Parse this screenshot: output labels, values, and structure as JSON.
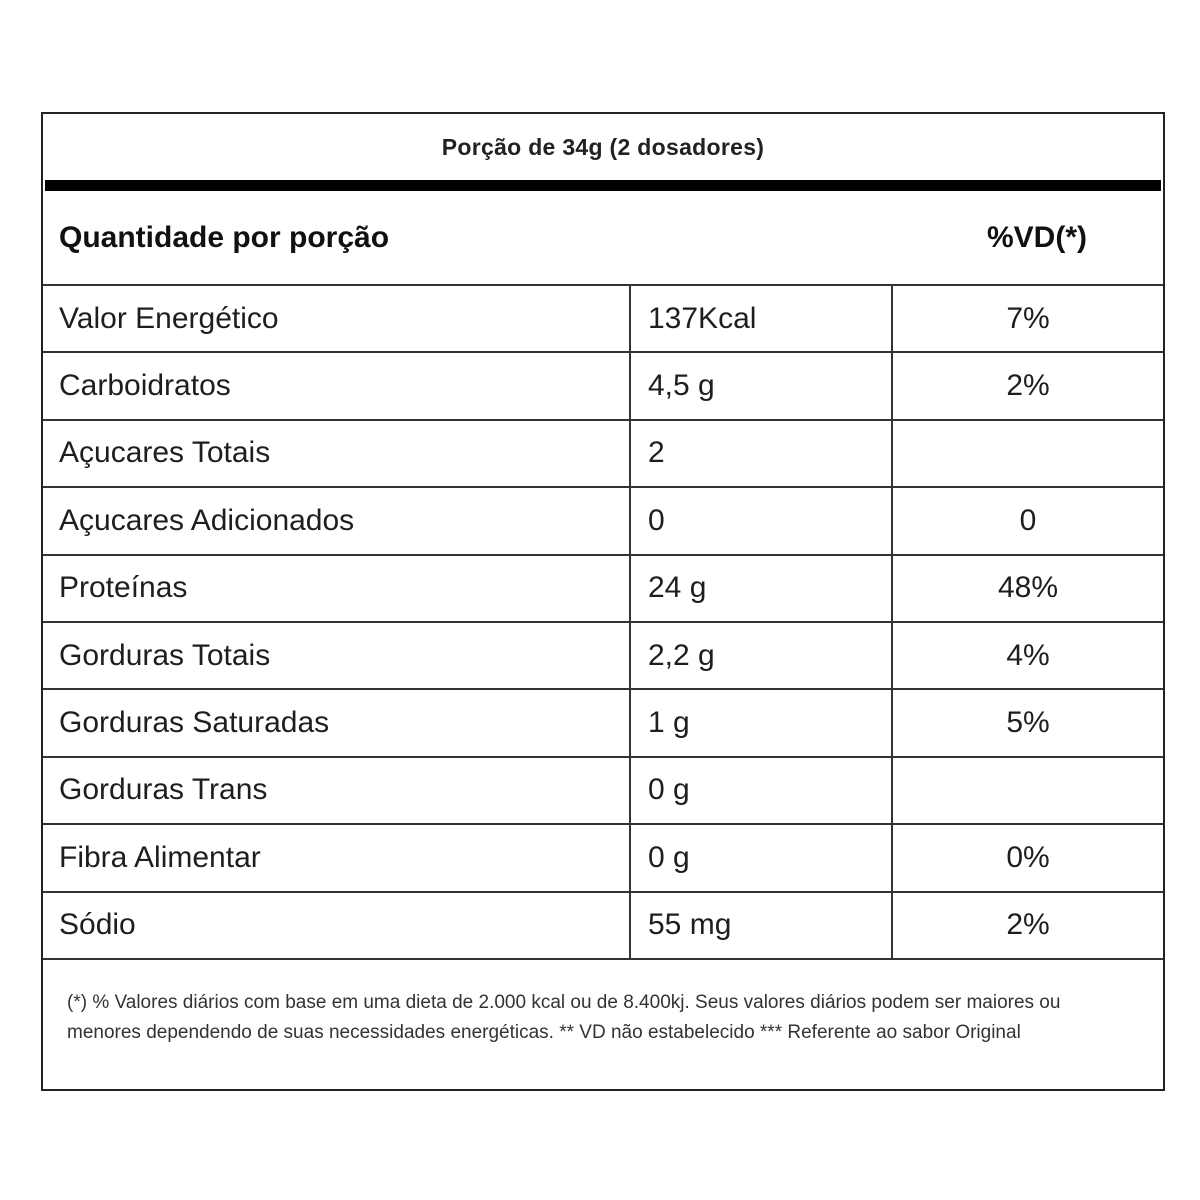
{
  "title": "Porção de 34g (2 dosadores)",
  "header": {
    "quantity_label": "Quantidade por porção",
    "vd_label": "%VD(*)"
  },
  "rows": [
    {
      "name": "Valor Energético",
      "amount": "137Kcal",
      "vd": "7%"
    },
    {
      "name": "Carboidratos",
      "amount": "4,5 g",
      "vd": "2%"
    },
    {
      "name": "Açucares Totais",
      "amount": "2",
      "vd": ""
    },
    {
      "name": "Açucares Adicionados",
      "amount": "0",
      "vd": "0"
    },
    {
      "name": "Proteínas",
      "amount": "24 g",
      "vd": "48%"
    },
    {
      "name": "Gorduras Totais",
      "amount": "2,2 g",
      "vd": "4%"
    },
    {
      "name": "Gorduras Saturadas",
      "amount": "1 g",
      "vd": "5%"
    },
    {
      "name": "Gorduras Trans",
      "amount": "0 g",
      "vd": ""
    },
    {
      "name": "Fibra Alimentar",
      "amount": "0 g",
      "vd": "0%"
    },
    {
      "name": "Sódio",
      "amount": "55 mg",
      "vd": "2%"
    }
  ],
  "footnote": "(*) % Valores diários com base em uma dieta de 2.000 kcal ou de 8.400kj. Seus valores diários podem ser maiores ou menores dependendo de suas necessidades energéticas. ** VD não estabelecido *** Referente ao sabor Original"
}
